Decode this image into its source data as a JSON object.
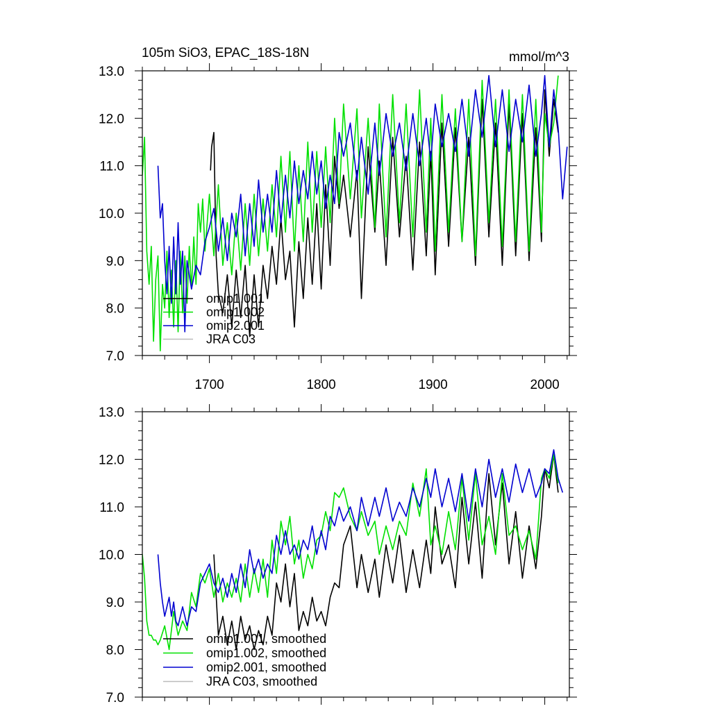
{
  "header": {
    "title": "105m SiO3, EPAC_18S-18N",
    "units": "mmol/m^3"
  },
  "colors": {
    "omip1_001": "#000000",
    "omip1_002": "#00e000",
    "omip2_001": "#0000d0",
    "jra_c03": "#bbbbbb"
  },
  "chart_data": [
    {
      "type": "line",
      "xlim": [
        1640,
        2022
      ],
      "ylim": [
        7.0,
        13.0
      ],
      "grid": false,
      "x_ticks": [
        "1700",
        "1800",
        "1900",
        "2000"
      ],
      "y_ticks": [
        "7.0",
        "8.0",
        "9.0",
        "10.0",
        "11.0",
        "12.0",
        "13.0"
      ],
      "legend_position": "bottom-left",
      "legend": [
        "omip1.001",
        "omip1.002",
        "omip2.001",
        "JRA C03"
      ],
      "series": [
        {
          "name": "omip1.001",
          "color": "#000000",
          "x": [
            1701,
            1702,
            1704,
            1706,
            1708,
            1712,
            1716,
            1720,
            1724,
            1728,
            1732,
            1736,
            1740,
            1744,
            1748,
            1752,
            1756,
            1760,
            1764,
            1768,
            1772,
            1776,
            1780,
            1784,
            1788,
            1792,
            1796,
            1800,
            1804,
            1808,
            1812,
            1816,
            1820,
            1826,
            1832,
            1836,
            1842,
            1848,
            1852,
            1858,
            1864,
            1870,
            1876,
            1882,
            1888,
            1894,
            1898,
            1902,
            1908,
            1914,
            1920,
            1926,
            1932,
            1938,
            1944,
            1950,
            1956,
            1962,
            1968,
            1974,
            1980,
            1986,
            1992,
            1997,
            2000,
            2004,
            2008,
            2012
          ],
          "values": [
            10.9,
            11.4,
            11.7,
            9.1,
            8.3,
            7.9,
            8.7,
            7.6,
            8.8,
            7.8,
            8.9,
            7.4,
            8.7,
            7.6,
            8.9,
            8.2,
            9.3,
            8.5,
            9.9,
            8.6,
            9.2,
            7.6,
            9.4,
            8.2,
            9.9,
            8.5,
            10.2,
            8.4,
            10.6,
            8.9,
            11.2,
            10.1,
            10.8,
            9.5,
            10.9,
            8.2,
            11.4,
            9.6,
            11.1,
            8.9,
            11.6,
            9.5,
            11.2,
            8.8,
            11.5,
            9.1,
            11.3,
            8.7,
            11.9,
            9.3,
            11.8,
            9.4,
            11.6,
            8.9,
            12.4,
            9.5,
            11.9,
            8.9,
            12.3,
            9.1,
            12.1,
            9.0,
            11.8,
            9.4,
            12.6,
            11.2,
            12.4,
            11.7
          ]
        },
        {
          "name": "omip1.002",
          "color": "#00e000",
          "x": [
            1640,
            1642,
            1644,
            1646,
            1648,
            1650,
            1652,
            1654,
            1656,
            1658,
            1660,
            1662,
            1664,
            1666,
            1668,
            1670,
            1672,
            1674,
            1676,
            1678,
            1680,
            1682,
            1684,
            1686,
            1688,
            1690,
            1692,
            1694,
            1696,
            1700,
            1704,
            1708,
            1712,
            1716,
            1720,
            1724,
            1728,
            1732,
            1736,
            1740,
            1744,
            1748,
            1752,
            1756,
            1760,
            1764,
            1768,
            1772,
            1776,
            1780,
            1784,
            1788,
            1792,
            1796,
            1800,
            1804,
            1808,
            1812,
            1816,
            1820,
            1826,
            1832,
            1836,
            1842,
            1848,
            1852,
            1858,
            1864,
            1870,
            1876,
            1882,
            1888,
            1894,
            1898,
            1902,
            1908,
            1914,
            1920,
            1926,
            1932,
            1938,
            1944,
            1950,
            1956,
            1962,
            1968,
            1974,
            1980,
            1986,
            1992,
            1997,
            2000,
            2004,
            2008,
            2012
          ],
          "values": [
            10.8,
            11.6,
            9.2,
            8.5,
            9.3,
            7.3,
            8.6,
            9.1,
            7.1,
            8.5,
            8.0,
            9.2,
            7.8,
            8.8,
            7.6,
            9.0,
            7.5,
            9.2,
            7.9,
            9.1,
            8.1,
            9.3,
            8.4,
            9.5,
            8.5,
            10.2,
            9.6,
            10.3,
            9.2,
            10.4,
            9.1,
            10.6,
            8.9,
            9.8,
            8.7,
            10.0,
            8.8,
            10.2,
            8.9,
            10.4,
            9.1,
            10.3,
            9.2,
            10.6,
            9.5,
            11.2,
            9.6,
            11.3,
            9.2,
            11.0,
            9.4,
            11.5,
            9.6,
            11.3,
            9.7,
            11.4,
            9.8,
            12.0,
            10.2,
            12.3,
            10.3,
            12.2,
            9.9,
            12.0,
            9.7,
            12.3,
            9.5,
            12.5,
            9.8,
            12.3,
            9.5,
            12.6,
            9.6,
            12.0,
            9.2,
            12.5,
            9.6,
            12.2,
            9.4,
            12.4,
            9.1,
            12.8,
            9.8,
            12.4,
            9.3,
            12.6,
            9.4,
            12.5,
            9.2,
            12.4,
            9.6,
            12.1,
            11.4,
            11.9,
            12.9
          ]
        },
        {
          "name": "omip2.001",
          "color": "#0000d0",
          "x": [
            1654,
            1656,
            1658,
            1660,
            1662,
            1664,
            1666,
            1668,
            1670,
            1672,
            1674,
            1676,
            1678,
            1680,
            1684,
            1688,
            1692,
            1696,
            1700,
            1704,
            1708,
            1712,
            1716,
            1720,
            1724,
            1728,
            1732,
            1736,
            1740,
            1744,
            1748,
            1752,
            1756,
            1760,
            1764,
            1768,
            1772,
            1776,
            1780,
            1784,
            1788,
            1792,
            1796,
            1800,
            1804,
            1808,
            1812,
            1816,
            1820,
            1826,
            1832,
            1836,
            1842,
            1848,
            1852,
            1858,
            1864,
            1870,
            1876,
            1882,
            1888,
            1894,
            1898,
            1902,
            1908,
            1914,
            1920,
            1926,
            1932,
            1938,
            1944,
            1950,
            1956,
            1962,
            1968,
            1974,
            1980,
            1986,
            1992,
            1997,
            2000,
            2004,
            2008,
            2012,
            2016,
            2020
          ],
          "values": [
            11.0,
            9.9,
            10.2,
            9.0,
            8.3,
            9.3,
            8.1,
            9.5,
            8.3,
            9.8,
            8.5,
            9.2,
            7.5,
            9.0,
            8.4,
            8.9,
            8.7,
            9.4,
            9.7,
            10.1,
            9.2,
            9.9,
            9.0,
            10.0,
            9.5,
            10.4,
            9.1,
            10.2,
            9.3,
            10.7,
            9.6,
            10.4,
            9.6,
            10.9,
            9.8,
            10.8,
            9.9,
            11.1,
            10.2,
            10.9,
            10.3,
            11.3,
            10.4,
            11.1,
            10.1,
            10.8,
            10.2,
            11.7,
            11.2,
            11.9,
            10.7,
            11.6,
            10.4,
            11.9,
            10.8,
            12.1,
            11.2,
            11.9,
            10.9,
            12.1,
            11.0,
            12.0,
            11.1,
            12.3,
            11.4,
            12.1,
            11.3,
            12.4,
            11.2,
            12.6,
            11.6,
            12.9,
            11.4,
            12.6,
            11.3,
            12.4,
            11.5,
            12.7,
            11.2,
            12.1,
            12.9,
            11.4,
            12.6,
            11.8,
            10.3,
            11.4
          ]
        }
      ]
    },
    {
      "type": "line",
      "xlim": [
        1640,
        2022
      ],
      "ylim": [
        7.0,
        13.0
      ],
      "grid": false,
      "x_ticks": [],
      "y_ticks": [
        "7.0",
        "8.0",
        "9.0",
        "10.0",
        "11.0",
        "12.0",
        "13.0"
      ],
      "legend_position": "bottom-left",
      "legend": [
        "omip1.001, smoothed",
        "omip1.002, smoothed",
        "omip2.001, smoothed",
        "JRA C03, smoothed"
      ],
      "series": [
        {
          "name": "omip1.001, smoothed",
          "color": "#000000",
          "x": [
            1704,
            1708,
            1712,
            1716,
            1720,
            1724,
            1728,
            1732,
            1736,
            1740,
            1744,
            1748,
            1752,
            1756,
            1760,
            1764,
            1768,
            1772,
            1776,
            1780,
            1784,
            1788,
            1792,
            1796,
            1800,
            1804,
            1808,
            1812,
            1816,
            1820,
            1826,
            1832,
            1836,
            1842,
            1848,
            1852,
            1858,
            1864,
            1870,
            1876,
            1882,
            1888,
            1894,
            1898,
            1902,
            1908,
            1914,
            1920,
            1926,
            1932,
            1938,
            1944,
            1950,
            1956,
            1962,
            1968,
            1974,
            1980,
            1986,
            1992,
            1997,
            2000,
            2004,
            2008,
            2012
          ],
          "values": [
            10.0,
            8.3,
            8.7,
            8.1,
            8.6,
            8.0,
            8.7,
            8.2,
            8.5,
            8.0,
            8.4,
            8.1,
            8.7,
            8.3,
            9.4,
            9.0,
            9.8,
            8.9,
            9.6,
            8.4,
            8.8,
            8.5,
            9.1,
            8.6,
            8.8,
            8.5,
            9.1,
            9.4,
            9.3,
            10.2,
            10.6,
            9.3,
            10.0,
            9.2,
            9.9,
            9.1,
            10.2,
            9.4,
            10.4,
            9.2,
            10.1,
            9.3,
            10.3,
            9.6,
            11.0,
            9.8,
            10.2,
            9.3,
            11.2,
            9.8,
            11.1,
            9.5,
            11.7,
            10.2,
            11.5,
            9.8,
            10.9,
            9.5,
            10.6,
            9.7,
            10.8,
            11.8,
            11.4,
            12.1,
            11.3
          ]
        },
        {
          "name": "omip1.002, smoothed",
          "color": "#00e000",
          "x": [
            1640,
            1642,
            1644,
            1646,
            1648,
            1650,
            1652,
            1654,
            1656,
            1660,
            1664,
            1668,
            1672,
            1676,
            1680,
            1684,
            1688,
            1692,
            1696,
            1700,
            1704,
            1708,
            1712,
            1716,
            1720,
            1724,
            1728,
            1732,
            1736,
            1740,
            1744,
            1748,
            1752,
            1756,
            1760,
            1764,
            1768,
            1772,
            1776,
            1780,
            1784,
            1788,
            1792,
            1796,
            1800,
            1804,
            1808,
            1812,
            1816,
            1820,
            1826,
            1832,
            1836,
            1842,
            1848,
            1852,
            1858,
            1864,
            1870,
            1876,
            1882,
            1888,
            1894,
            1898,
            1902,
            1908,
            1914,
            1920,
            1926,
            1932,
            1938,
            1944,
            1950,
            1956,
            1962,
            1968,
            1974,
            1980,
            1986,
            1992,
            1997,
            2000,
            2004,
            2008,
            2012
          ],
          "values": [
            10.0,
            9.5,
            8.6,
            8.3,
            8.3,
            8.2,
            8.2,
            8.1,
            8.2,
            8.5,
            8.0,
            8.8,
            8.3,
            8.6,
            8.4,
            9.2,
            8.9,
            9.6,
            9.4,
            9.7,
            9.1,
            9.6,
            9.0,
            9.4,
            9.1,
            9.5,
            9.0,
            9.8,
            9.1,
            9.7,
            9.2,
            9.9,
            9.1,
            10.3,
            9.6,
            10.7,
            10.2,
            10.8,
            9.8,
            10.3,
            9.5,
            10.0,
            9.7,
            10.3,
            10.4,
            10.9,
            10.5,
            11.3,
            11.2,
            11.4,
            10.8,
            10.5,
            10.9,
            10.4,
            10.7,
            10.0,
            10.6,
            10.1,
            10.7,
            10.4,
            11.5,
            10.8,
            11.8,
            10.2,
            10.6,
            10.0,
            10.9,
            10.1,
            11.6,
            10.3,
            11.7,
            10.2,
            10.8,
            10.0,
            11.7,
            10.4,
            10.6,
            10.1,
            10.5,
            9.9,
            11.6,
            11.8,
            11.6,
            12.1,
            11.5
          ]
        },
        {
          "name": "omip2.001, smoothed",
          "color": "#0000d0",
          "x": [
            1654,
            1656,
            1658,
            1660,
            1662,
            1664,
            1666,
            1668,
            1670,
            1672,
            1676,
            1680,
            1684,
            1688,
            1692,
            1696,
            1700,
            1704,
            1708,
            1712,
            1716,
            1720,
            1724,
            1728,
            1732,
            1736,
            1740,
            1744,
            1748,
            1752,
            1756,
            1760,
            1764,
            1768,
            1772,
            1776,
            1780,
            1784,
            1788,
            1792,
            1796,
            1800,
            1804,
            1808,
            1812,
            1816,
            1820,
            1826,
            1832,
            1836,
            1842,
            1848,
            1852,
            1858,
            1864,
            1870,
            1876,
            1882,
            1888,
            1894,
            1898,
            1902,
            1908,
            1914,
            1920,
            1926,
            1932,
            1938,
            1944,
            1950,
            1956,
            1962,
            1968,
            1974,
            1980,
            1986,
            1992,
            1997,
            2000,
            2004,
            2008,
            2012,
            2016
          ],
          "values": [
            10.0,
            9.4,
            9.0,
            8.7,
            8.9,
            9.1,
            8.7,
            9.0,
            8.6,
            8.5,
            8.9,
            8.5,
            8.9,
            8.8,
            9.4,
            9.6,
            9.8,
            9.4,
            9.2,
            9.5,
            9.1,
            9.6,
            9.2,
            9.8,
            9.3,
            10.1,
            9.6,
            9.9,
            9.5,
            9.8,
            9.6,
            10.4,
            10.0,
            10.5,
            10.0,
            10.2,
            9.9,
            10.3,
            10.1,
            10.6,
            10.0,
            10.5,
            10.1,
            10.8,
            10.6,
            11.0,
            10.7,
            11.0,
            10.5,
            11.2,
            10.6,
            11.2,
            10.8,
            11.4,
            10.7,
            11.1,
            10.8,
            11.4,
            11.0,
            11.6,
            11.2,
            11.8,
            11.0,
            11.6,
            10.9,
            11.7,
            10.7,
            11.8,
            11.0,
            12.0,
            11.2,
            11.8,
            11.1,
            11.9,
            11.3,
            11.8,
            11.2,
            11.5,
            11.8,
            11.7,
            12.2,
            11.6,
            11.3
          ]
        }
      ]
    }
  ]
}
